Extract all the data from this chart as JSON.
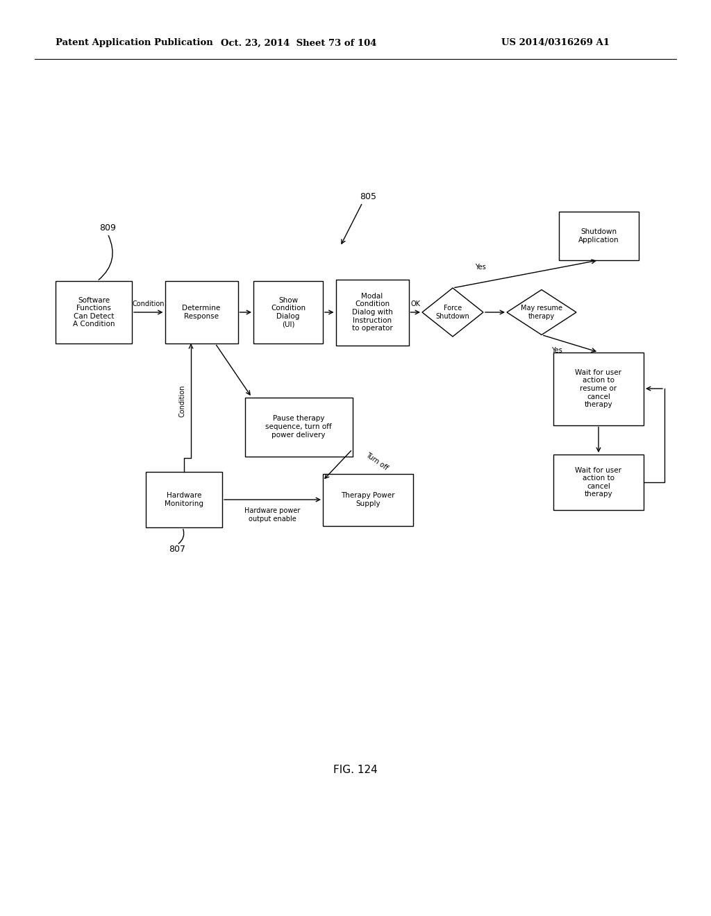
{
  "background_color": "#ffffff",
  "header_left": "Patent Application Publication",
  "header_mid": "Oct. 23, 2014  Sheet 73 of 104",
  "header_right": "US 2014/0316269 A1",
  "fig_label": "FIG. 124",
  "font_size_box": 7.5,
  "font_size_label": 8.5,
  "font_size_header": 9.5,
  "font_size_fig": 11
}
